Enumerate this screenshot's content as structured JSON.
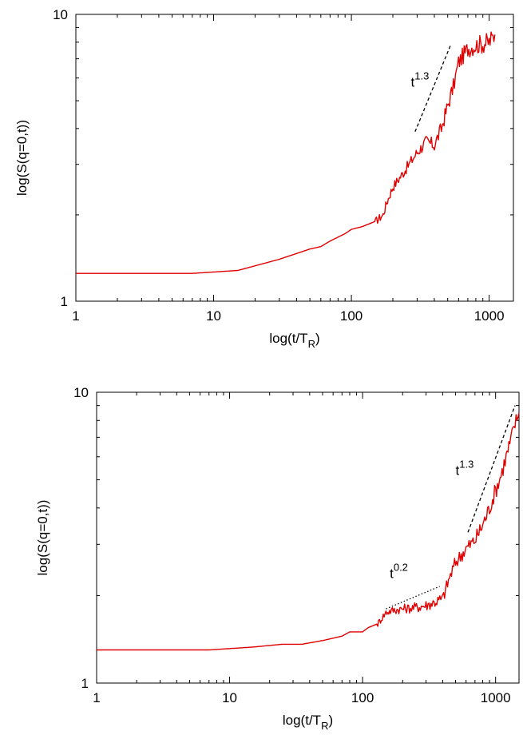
{
  "chart_data": [
    {
      "type": "line",
      "xlabel": "log(t/T",
      "xlabel_sub": "R",
      "xlabel_close": ")",
      "ylabel": "log(S(q=0,t))",
      "xscale": "log",
      "yscale": "log",
      "xlim": [
        1,
        1500
      ],
      "ylim": [
        1,
        10
      ],
      "xticks": [
        {
          "value": 1,
          "label": "1"
        },
        {
          "value": 10,
          "label": "10"
        },
        {
          "value": 100,
          "label": "100"
        },
        {
          "value": 1000,
          "label": "1000"
        }
      ],
      "yticks": [
        {
          "value": 1,
          "label": "1"
        },
        {
          "value": 10,
          "label": "10"
        }
      ],
      "grid": false,
      "series": [
        {
          "color": "#e00000",
          "x": [
            1,
            7,
            15,
            30,
            50,
            60,
            70,
            90,
            100,
            120,
            150,
            170,
            180,
            200,
            250,
            300,
            350,
            400,
            450,
            500,
            550,
            600,
            700,
            800,
            900,
            1000,
            1100
          ],
          "y": [
            1.25,
            1.25,
            1.28,
            1.4,
            1.52,
            1.55,
            1.62,
            1.72,
            1.78,
            1.82,
            1.9,
            2.0,
            2.2,
            2.5,
            2.9,
            3.3,
            3.6,
            3.5,
            4.0,
            4.8,
            5.6,
            6.8,
            7.6,
            7.8,
            7.9,
            8.0,
            8.5
          ],
          "noise_from_x": 150,
          "noise": 0.035
        }
      ],
      "guides": [
        {
          "style": "dashed",
          "x": [
            290,
            530
          ],
          "y": [
            3.9,
            7.9
          ],
          "label": "t",
          "exponent": "1.3",
          "label_at": [
            270,
            5.6
          ]
        }
      ]
    },
    {
      "type": "line",
      "xlabel": "log(t/T",
      "xlabel_sub": "R",
      "xlabel_close": ")",
      "ylabel": "log(S(q=0,t))",
      "xscale": "log",
      "yscale": "log",
      "xlim": [
        1,
        1500
      ],
      "ylim": [
        1,
        10
      ],
      "xticks": [
        {
          "value": 1,
          "label": "1"
        },
        {
          "value": 10,
          "label": "10"
        },
        {
          "value": 100,
          "label": "100"
        },
        {
          "value": 1000,
          "label": "1000"
        }
      ],
      "yticks": [
        {
          "value": 1,
          "label": "1"
        },
        {
          "value": 10,
          "label": "10"
        }
      ],
      "grid": false,
      "series": [
        {
          "color": "#e00000",
          "x": [
            1,
            7,
            15,
            25,
            35,
            50,
            70,
            80,
            100,
            110,
            130,
            150,
            170,
            200,
            250,
            300,
            350,
            400,
            450,
            500,
            600,
            700,
            800,
            900,
            1000,
            1100,
            1200,
            1300,
            1400,
            1500
          ],
          "y": [
            1.3,
            1.3,
            1.33,
            1.36,
            1.36,
            1.4,
            1.45,
            1.5,
            1.5,
            1.55,
            1.6,
            1.75,
            1.78,
            1.8,
            1.82,
            1.85,
            1.9,
            1.95,
            2.3,
            2.6,
            2.9,
            3.1,
            3.5,
            4.0,
            4.6,
            5.2,
            6.0,
            6.8,
            7.8,
            8.5
          ],
          "noise_from_x": 130,
          "noise": 0.03
        }
      ],
      "guides": [
        {
          "style": "dotted",
          "x": [
            150,
            380
          ],
          "y": [
            1.8,
            2.15
          ],
          "label": "t",
          "exponent": "0.2",
          "label_at": [
            160,
            2.3
          ]
        },
        {
          "style": "dashed",
          "x": [
            620,
            1400
          ],
          "y": [
            3.3,
            9.0
          ],
          "label": "t",
          "exponent": "1.3",
          "label_at": [
            500,
            5.2
          ]
        }
      ]
    }
  ]
}
